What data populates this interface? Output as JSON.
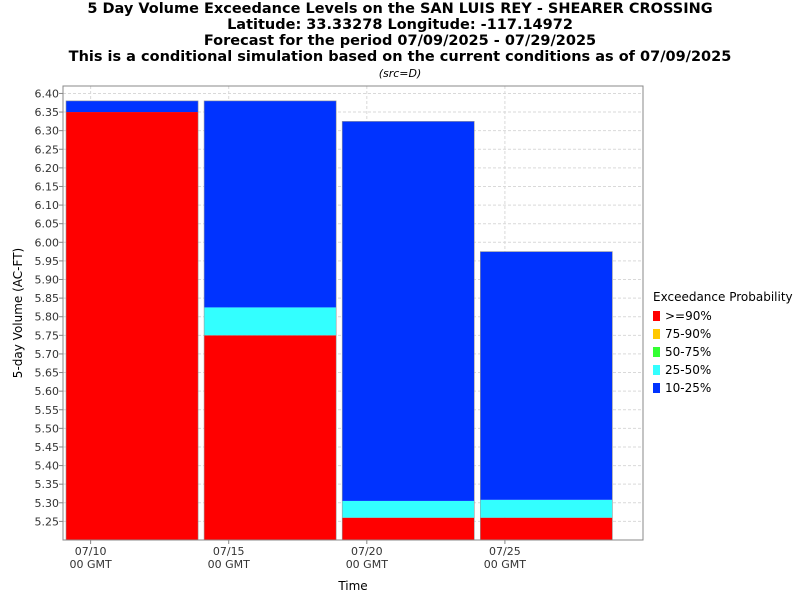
{
  "title_lines": [
    "5 Day Volume Exceedance Levels on the SAN LUIS REY - SHEARER CROSSING",
    "Latitude: 33.33278 Longitude: -117.14972",
    "Forecast for the period 07/09/2025 - 07/29/2025",
    "This is a conditional simulation based on the current conditions as of 07/09/2025"
  ],
  "subtitle": "(src=D)",
  "chart_data": {
    "type": "bar",
    "stacked": true,
    "xlabel": "Time",
    "ylabel": "5-day Volume (AC-FT)",
    "ylim": [
      5.2,
      6.42
    ],
    "xlim": [
      "07/09/2025 00 GMT",
      "07/30/2025 00 GMT"
    ],
    "yticks": [
      "5.25",
      "5.30",
      "5.35",
      "5.40",
      "5.45",
      "5.50",
      "5.55",
      "5.60",
      "5.65",
      "5.70",
      "5.75",
      "5.80",
      "5.85",
      "5.90",
      "5.95",
      "6.00",
      "6.05",
      "6.10",
      "6.15",
      "6.20",
      "6.25",
      "6.30",
      "6.35",
      "6.40"
    ],
    "xticks": [
      {
        "line1": "07/10",
        "line2": "00 GMT"
      },
      {
        "line1": "07/15",
        "line2": "00 GMT"
      },
      {
        "line1": "07/20",
        "line2": "00 GMT"
      },
      {
        "line1": "07/25",
        "line2": "00 GMT"
      }
    ],
    "grid": true,
    "legend_title": "Exceedance Probability",
    "legend_position": "right",
    "legend": [
      {
        "name": ">=90%",
        "color": "#ff0000"
      },
      {
        "name": "75-90%",
        "color": "#ffc800"
      },
      {
        "name": "50-75%",
        "color": "#33ff33"
      },
      {
        "name": "25-50%",
        "color": "#33ffff"
      },
      {
        "name": "10-25%",
        "color": "#0033ff"
      }
    ],
    "periods": [
      {
        "start": "07/09/2025",
        "end": "07/14/2025",
        "levels": [
          {
            "series": ">=90%",
            "value": 6.35
          },
          {
            "series": "10-25%",
            "value": 6.38
          }
        ]
      },
      {
        "start": "07/14/2025",
        "end": "07/19/2025",
        "levels": [
          {
            "series": ">=90%",
            "value": 5.75
          },
          {
            "series": "25-50%",
            "value": 5.825
          },
          {
            "series": "10-25%",
            "value": 6.38
          }
        ]
      },
      {
        "start": "07/19/2025",
        "end": "07/24/2025",
        "levels": [
          {
            "series": ">=90%",
            "value": 5.26
          },
          {
            "series": "25-50%",
            "value": 5.305
          },
          {
            "series": "10-25%",
            "value": 6.325
          }
        ]
      },
      {
        "start": "07/24/2025",
        "end": "07/29/2025",
        "levels": [
          {
            "series": ">=90%",
            "value": 5.26
          },
          {
            "series": "25-50%",
            "value": 5.308
          },
          {
            "series": "10-25%",
            "value": 5.975
          }
        ]
      }
    ]
  }
}
